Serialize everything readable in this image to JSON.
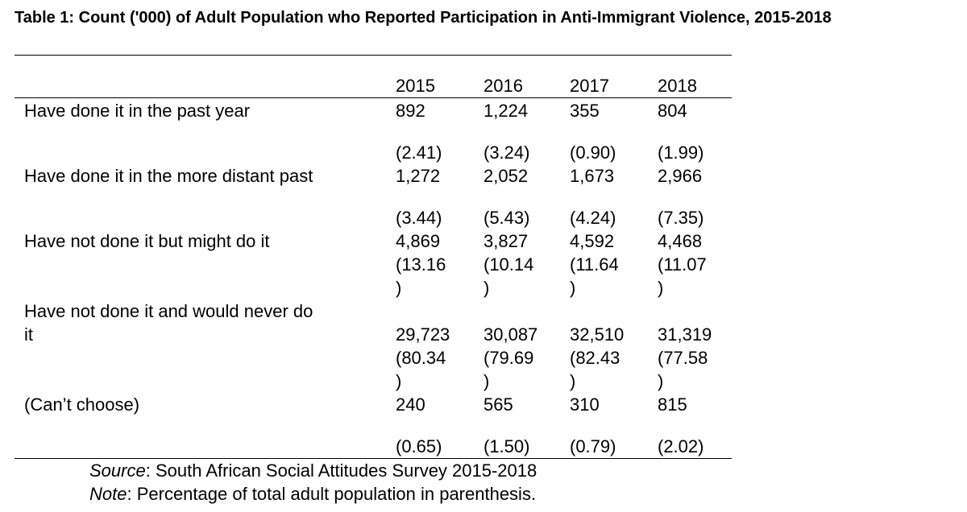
{
  "title": "Table 1: Count ('000) of Adult Population who Reported Participation in Anti-Immigrant Violence, 2015-2018",
  "columns": [
    "2015",
    "2016",
    "2017",
    "2018"
  ],
  "rows": [
    {
      "label": "Have done it in the past year",
      "counts": [
        "892",
        "1,224",
        "355",
        "804"
      ],
      "pct": [
        "(2.41)",
        "(3.24)",
        "(0.90)",
        "(1.99)"
      ]
    },
    {
      "label": "Have done it in the more distant past",
      "counts": [
        "1,272",
        "2,052",
        "1,673",
        "2,966"
      ],
      "pct": [
        "(3.44)",
        "(5.43)",
        "(4.24)",
        "(7.35)"
      ]
    },
    {
      "label": "Have not done it but might do it",
      "counts": [
        "4,869",
        "3,827",
        "4,592",
        "4,468"
      ],
      "pct": [
        "(13.16",
        "(10.14",
        "(11.64",
        "(11.07"
      ],
      "pct_close": [
        ")",
        ")",
        ")",
        ")"
      ]
    },
    {
      "label_line1": "Have not done it and would never do",
      "label_line2": "it",
      "counts": [
        "29,723",
        "30,087",
        "32,510",
        "31,319"
      ],
      "pct": [
        "(80.34",
        "(79.69",
        "(82.43",
        "(77.58"
      ],
      "pct_close": [
        ")",
        ")",
        ")",
        ")"
      ]
    },
    {
      "label": "(Can’t choose)",
      "counts": [
        "240",
        "565",
        "310",
        "815"
      ],
      "pct": [
        "(0.65)",
        "(1.50)",
        "(0.79)",
        "(2.02)"
      ]
    }
  ],
  "source_label": "Source",
  "source_text": ": South African Social Attitudes Survey 2015-2018",
  "note_label": "Note",
  "note_text": ": Percentage of total adult population in parenthesis."
}
